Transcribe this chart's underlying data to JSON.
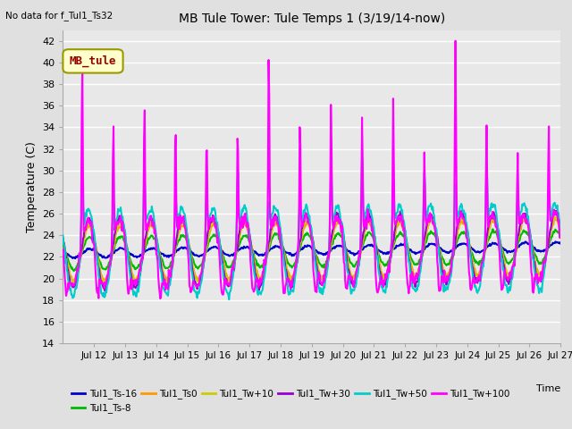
{
  "title": "MB Tule Tower: Tule Temps 1 (3/19/14-now)",
  "no_data_text": "No data for f_Tul1_Ts32",
  "xlabel": "Time",
  "ylabel": "Temperature (C)",
  "ylim": [
    14,
    43
  ],
  "yticks": [
    14,
    16,
    18,
    20,
    22,
    24,
    26,
    28,
    30,
    32,
    34,
    36,
    38,
    40,
    42
  ],
  "xtick_labels": [
    "Jul 12",
    "Jul 13",
    "Jul 14",
    "Jul 15",
    "Jul 16",
    "Jul 17",
    "Jul 18",
    "Jul 19",
    "Jul 20",
    "Jul 21",
    "Jul 22",
    "Jul 23",
    "Jul 24",
    "Jul 25",
    "Jul 26",
    "Jul 27"
  ],
  "xtick_positions": [
    12,
    13,
    14,
    15,
    16,
    17,
    18,
    19,
    20,
    21,
    22,
    23,
    24,
    25,
    26,
    27
  ],
  "xlabel_extra": "Time",
  "legend_label": "MB_tule",
  "legend_box_color": "#ffffcc",
  "legend_box_edge": "#999900",
  "legend_label_color": "#990000",
  "series": [
    {
      "label": "Tul1_Ts-16",
      "color": "#0000cc",
      "lw": 1.5
    },
    {
      "label": "Tul1_Ts-8",
      "color": "#00bb00",
      "lw": 1.5
    },
    {
      "label": "Tul1_Ts0",
      "color": "#ff9900",
      "lw": 1.5
    },
    {
      "label": "Tul1_Tw+10",
      "color": "#cccc00",
      "lw": 1.5
    },
    {
      "label": "Tul1_Tw+30",
      "color": "#9900cc",
      "lw": 1.5
    },
    {
      "label": "Tul1_Tw+50",
      "color": "#00cccc",
      "lw": 1.5
    },
    {
      "label": "Tul1_Tw+100",
      "color": "#ff00ff",
      "lw": 1.5
    }
  ],
  "bg_color": "#e0e0e0",
  "plot_bg_color": "#e8e8e8",
  "grid_color": "#ffffff"
}
